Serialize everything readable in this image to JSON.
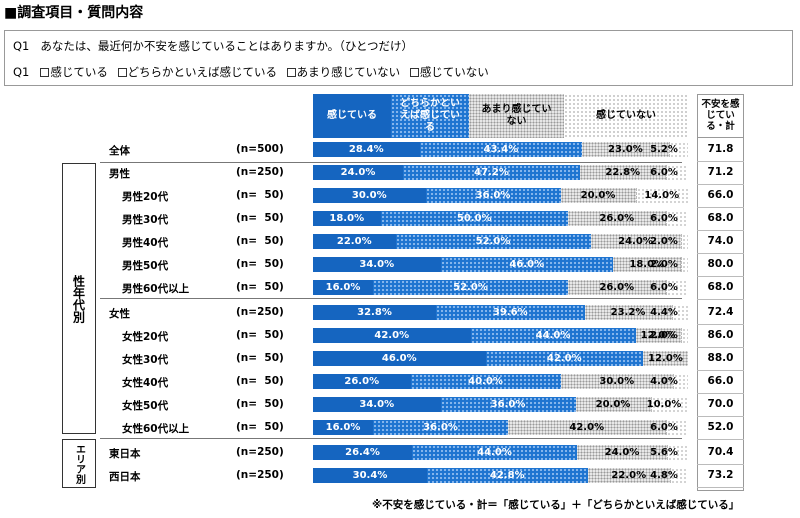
{
  "section_title": "■調査項目・質問内容",
  "question": {
    "label": "Q1",
    "text": "あなたは、最近何か不安を感じていることはありますか。（ひとつだけ）",
    "options": [
      "感じている",
      "どちらかといえば感じている",
      "あまり感じていない",
      "感じていない"
    ]
  },
  "groups": {
    "gender_age": "性年代別",
    "area": "エリア別"
  },
  "chart_data": {
    "type": "bar",
    "orientation": "horizontal",
    "stacked": true,
    "unit": "%",
    "total_header": "不安を感じている・計",
    "series": [
      {
        "name": "感じている",
        "color": "#1565c0"
      },
      {
        "name": "どちらかといえば感じている",
        "color": "#1e74d0"
      },
      {
        "name": "あまり感じていない",
        "color": "#e9e9e9"
      },
      {
        "name": "感じていない",
        "color": "#ffffff"
      }
    ],
    "rows": [
      {
        "label": "全体",
        "n": "(n=500)",
        "values": [
          28.4,
          43.4,
          23.0,
          5.2
        ],
        "total": "71.8"
      },
      {
        "label": "男性",
        "n": "(n=250)",
        "values": [
          24.0,
          47.2,
          22.8,
          6.0
        ],
        "total": "71.2"
      },
      {
        "label": "男性20代",
        "n": "(n=  50)",
        "values": [
          30.0,
          36.0,
          20.0,
          14.0
        ],
        "total": "66.0"
      },
      {
        "label": "男性30代",
        "n": "(n=  50)",
        "values": [
          18.0,
          50.0,
          26.0,
          6.0
        ],
        "total": "68.0"
      },
      {
        "label": "男性40代",
        "n": "(n=  50)",
        "values": [
          22.0,
          52.0,
          24.0,
          2.0
        ],
        "total": "74.0"
      },
      {
        "label": "男性50代",
        "n": "(n=  50)",
        "values": [
          34.0,
          46.0,
          18.0,
          2.0
        ],
        "total": "80.0"
      },
      {
        "label": "男性60代以上",
        "n": "(n=  50)",
        "values": [
          16.0,
          52.0,
          26.0,
          6.0
        ],
        "total": "68.0"
      },
      {
        "label": "女性",
        "n": "(n=250)",
        "values": [
          32.8,
          39.6,
          23.2,
          4.4
        ],
        "total": "72.4"
      },
      {
        "label": "女性20代",
        "n": "(n=  50)",
        "values": [
          42.0,
          44.0,
          12.0,
          2.0
        ],
        "total": "86.0"
      },
      {
        "label": "女性30代",
        "n": "(n=  50)",
        "values": [
          46.0,
          42.0,
          12.0,
          0.0
        ],
        "total": "88.0"
      },
      {
        "label": "女性40代",
        "n": "(n=  50)",
        "values": [
          26.0,
          40.0,
          30.0,
          4.0
        ],
        "total": "66.0"
      },
      {
        "label": "女性50代",
        "n": "(n=  50)",
        "values": [
          34.0,
          36.0,
          20.0,
          10.0
        ],
        "total": "70.0"
      },
      {
        "label": "女性60代以上",
        "n": "(n=  50)",
        "values": [
          16.0,
          36.0,
          42.0,
          6.0
        ],
        "total": "52.0"
      },
      {
        "label": "東日本",
        "n": "(n=250)",
        "values": [
          26.4,
          44.0,
          24.0,
          5.6
        ],
        "total": "70.4"
      },
      {
        "label": "西日本",
        "n": "(n=250)",
        "values": [
          30.4,
          42.8,
          22.0,
          4.8
        ],
        "total": "73.2"
      }
    ],
    "xlim": [
      0,
      100
    ]
  },
  "footnote": "※不安を感じている・計＝「感じている」＋「どちらかといえば感じている」"
}
